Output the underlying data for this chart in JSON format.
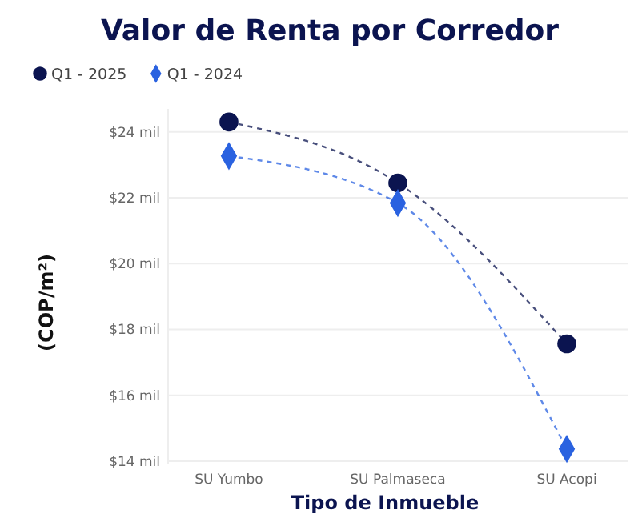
{
  "chart_data": {
    "type": "line",
    "title": "Valor de Renta por Corredor",
    "xlabel": "Tipo de Inmueble",
    "ylabel": "(COP/m²)",
    "categories": [
      "SU Yumbo",
      "SU Palmaseca",
      "SU Acopi"
    ],
    "series": [
      {
        "name": "Q1 - 2025",
        "color": "#0b1450",
        "marker": "circle",
        "values": [
          24.3,
          22.45,
          17.56
        ]
      },
      {
        "name": "Q1 - 2024",
        "color": "#2a62e0",
        "marker": "diamond",
        "values": [
          23.27,
          21.84,
          14.37
        ]
      }
    ],
    "ylim": [
      13.9,
      24.7
    ],
    "yticks": [
      {
        "value": 14,
        "label": "$14 mil"
      },
      {
        "value": 16,
        "label": "$16 mil"
      },
      {
        "value": 18,
        "label": "$18 mil"
      },
      {
        "value": 20,
        "label": "$20 mil"
      },
      {
        "value": 22,
        "label": "$22 mil"
      },
      {
        "value": 24,
        "label": "$24 mil"
      }
    ],
    "grid": "y",
    "legend": "top left",
    "line_style": "dashed"
  }
}
